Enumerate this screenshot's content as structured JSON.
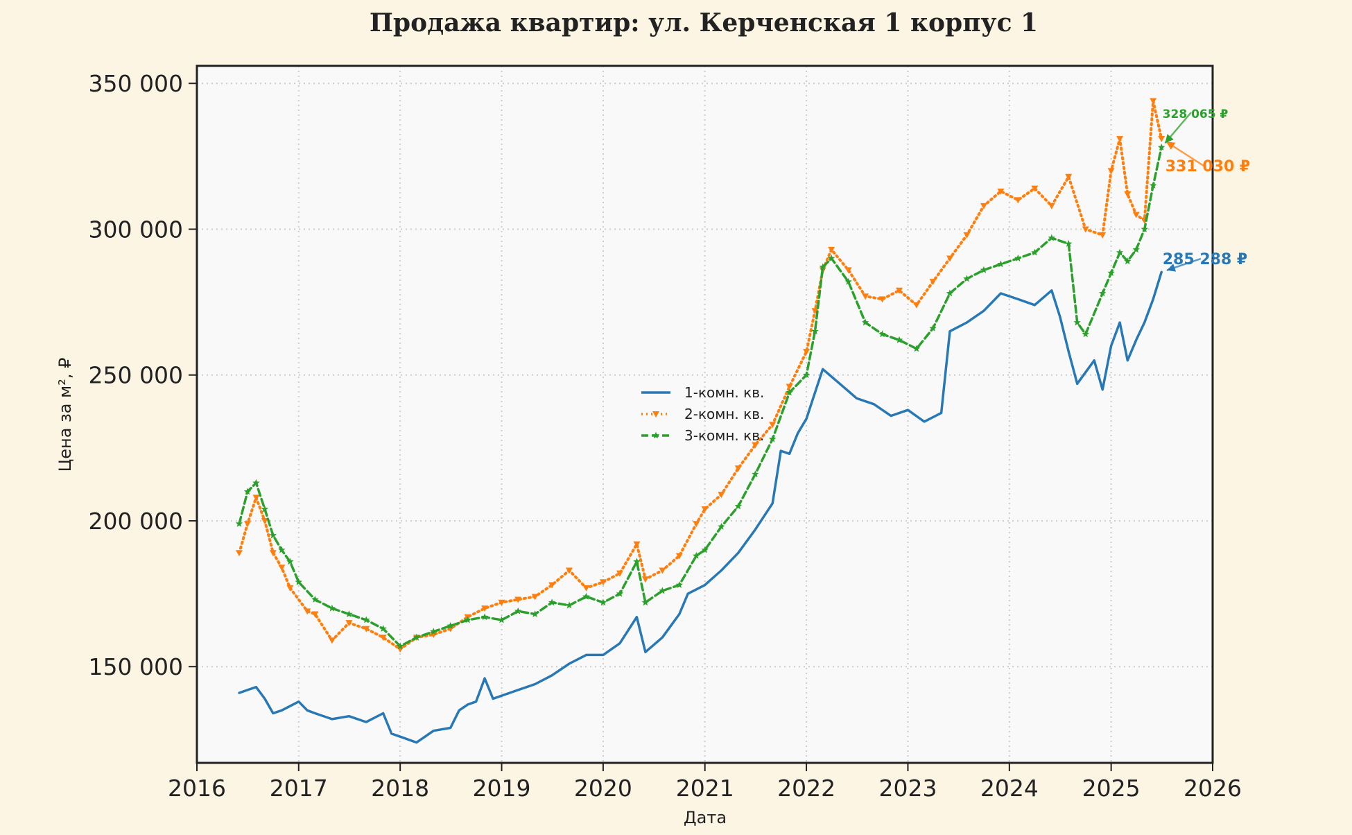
{
  "chart_data": {
    "type": "line",
    "title": "Продажа квартир: ул. Керченская 1 корпус 1",
    "xlabel": "Дата",
    "ylabel": "Цена за м², ₽",
    "xlim": [
      "2016-01-01",
      "2026-01-01"
    ],
    "ylim": [
      117000,
      356000
    ],
    "x_ticks": [
      "2016",
      "2017",
      "2018",
      "2019",
      "2020",
      "2021",
      "2022",
      "2023",
      "2024",
      "2025",
      "2026"
    ],
    "y_ticks": [
      {
        "value": 150000,
        "label": "150 000"
      },
      {
        "value": 200000,
        "label": "200 000"
      },
      {
        "value": 250000,
        "label": "250 000"
      },
      {
        "value": 300000,
        "label": "300 000"
      },
      {
        "value": 350000,
        "label": "350 000"
      }
    ],
    "grid": true,
    "legend_position": "center",
    "background_color": "#fcf5e3",
    "plot_background_color": "#f9f9f9",
    "series": [
      {
        "name": "1-комн. кв.",
        "color": "#2878b5",
        "style": "solid",
        "points": [
          [
            "2016-06-01",
            141000
          ],
          [
            "2016-07-01",
            142000
          ],
          [
            "2016-08-01",
            143000
          ],
          [
            "2016-09-01",
            139000
          ],
          [
            "2016-10-01",
            134000
          ],
          [
            "2016-11-01",
            135000
          ],
          [
            "2017-01-01",
            138000
          ],
          [
            "2017-02-01",
            135000
          ],
          [
            "2017-03-01",
            134000
          ],
          [
            "2017-05-01",
            132000
          ],
          [
            "2017-07-01",
            133000
          ],
          [
            "2017-09-01",
            131000
          ],
          [
            "2017-11-01",
            134000
          ],
          [
            "2017-12-01",
            127000
          ],
          [
            "2018-01-01",
            126000
          ],
          [
            "2018-03-01",
            124000
          ],
          [
            "2018-05-01",
            128000
          ],
          [
            "2018-07-01",
            129000
          ],
          [
            "2018-08-01",
            135000
          ],
          [
            "2018-09-01",
            137000
          ],
          [
            "2018-10-01",
            138000
          ],
          [
            "2018-11-01",
            146000
          ],
          [
            "2018-12-01",
            139000
          ],
          [
            "2019-03-01",
            142000
          ],
          [
            "2019-05-01",
            144000
          ],
          [
            "2019-07-01",
            147000
          ],
          [
            "2019-09-01",
            151000
          ],
          [
            "2019-11-01",
            154000
          ],
          [
            "2020-01-01",
            154000
          ],
          [
            "2020-03-01",
            158000
          ],
          [
            "2020-05-01",
            167000
          ],
          [
            "2020-06-01",
            155000
          ],
          [
            "2020-08-01",
            160000
          ],
          [
            "2020-10-01",
            168000
          ],
          [
            "2020-11-01",
            175000
          ],
          [
            "2021-01-01",
            178000
          ],
          [
            "2021-03-01",
            183000
          ],
          [
            "2021-05-01",
            189000
          ],
          [
            "2021-07-01",
            197000
          ],
          [
            "2021-09-01",
            206000
          ],
          [
            "2021-10-01",
            224000
          ],
          [
            "2021-11-01",
            223000
          ],
          [
            "2021-12-01",
            230000
          ],
          [
            "2022-01-01",
            235000
          ],
          [
            "2022-02-01",
            244000
          ],
          [
            "2022-03-01",
            252000
          ],
          [
            "2022-05-01",
            247000
          ],
          [
            "2022-07-01",
            242000
          ],
          [
            "2022-09-01",
            240000
          ],
          [
            "2022-11-01",
            236000
          ],
          [
            "2023-01-01",
            238000
          ],
          [
            "2023-03-01",
            234000
          ],
          [
            "2023-05-01",
            237000
          ],
          [
            "2023-06-01",
            265000
          ],
          [
            "2023-08-01",
            268000
          ],
          [
            "2023-10-01",
            272000
          ],
          [
            "2023-12-01",
            278000
          ],
          [
            "2024-02-01",
            276000
          ],
          [
            "2024-04-01",
            274000
          ],
          [
            "2024-06-01",
            279000
          ],
          [
            "2024-07-01",
            270000
          ],
          [
            "2024-08-01",
            258000
          ],
          [
            "2024-09-01",
            247000
          ],
          [
            "2024-11-01",
            255000
          ],
          [
            "2024-12-01",
            245000
          ],
          [
            "2025-01-01",
            260000
          ],
          [
            "2025-02-01",
            268000
          ],
          [
            "2025-03-01",
            255000
          ],
          [
            "2025-04-01",
            262000
          ],
          [
            "2025-05-01",
            268000
          ],
          [
            "2025-06-01",
            276000
          ],
          [
            "2025-07-01",
            285288
          ]
        ]
      },
      {
        "name": "2-комн. кв.",
        "color": "#ff7f0e",
        "style": "dotted",
        "marker": "triangle-down",
        "points": [
          [
            "2016-06-01",
            189000
          ],
          [
            "2016-07-01",
            199000
          ],
          [
            "2016-08-01",
            208000
          ],
          [
            "2016-09-01",
            200000
          ],
          [
            "2016-10-01",
            189000
          ],
          [
            "2016-11-01",
            184000
          ],
          [
            "2016-12-01",
            177000
          ],
          [
            "2017-02-01",
            169000
          ],
          [
            "2017-03-01",
            168000
          ],
          [
            "2017-05-01",
            159000
          ],
          [
            "2017-07-01",
            165000
          ],
          [
            "2017-09-01",
            163000
          ],
          [
            "2017-11-01",
            160000
          ],
          [
            "2018-01-01",
            156000
          ],
          [
            "2018-03-01",
            160000
          ],
          [
            "2018-05-01",
            161000
          ],
          [
            "2018-07-01",
            163000
          ],
          [
            "2018-09-01",
            167000
          ],
          [
            "2018-11-01",
            170000
          ],
          [
            "2019-01-01",
            172000
          ],
          [
            "2019-03-01",
            173000
          ],
          [
            "2019-05-01",
            174000
          ],
          [
            "2019-07-01",
            178000
          ],
          [
            "2019-09-01",
            183000
          ],
          [
            "2019-11-01",
            177000
          ],
          [
            "2020-01-01",
            179000
          ],
          [
            "2020-03-01",
            182000
          ],
          [
            "2020-05-01",
            192000
          ],
          [
            "2020-06-01",
            180000
          ],
          [
            "2020-08-01",
            183000
          ],
          [
            "2020-10-01",
            188000
          ],
          [
            "2020-12-01",
            199000
          ],
          [
            "2021-01-01",
            204000
          ],
          [
            "2021-03-01",
            209000
          ],
          [
            "2021-05-01",
            218000
          ],
          [
            "2021-07-01",
            226000
          ],
          [
            "2021-09-01",
            233000
          ],
          [
            "2021-11-01",
            246000
          ],
          [
            "2022-01-01",
            258000
          ],
          [
            "2022-02-01",
            272000
          ],
          [
            "2022-03-01",
            286000
          ],
          [
            "2022-04-01",
            293000
          ],
          [
            "2022-06-01",
            286000
          ],
          [
            "2022-08-01",
            277000
          ],
          [
            "2022-10-01",
            276000
          ],
          [
            "2022-12-01",
            279000
          ],
          [
            "2023-02-01",
            274000
          ],
          [
            "2023-04-01",
            282000
          ],
          [
            "2023-06-01",
            290000
          ],
          [
            "2023-08-01",
            298000
          ],
          [
            "2023-10-01",
            308000
          ],
          [
            "2023-12-01",
            313000
          ],
          [
            "2024-02-01",
            310000
          ],
          [
            "2024-04-01",
            314000
          ],
          [
            "2024-06-01",
            308000
          ],
          [
            "2024-08-01",
            318000
          ],
          [
            "2024-10-01",
            300000
          ],
          [
            "2024-12-01",
            298000
          ],
          [
            "2025-01-01",
            320000
          ],
          [
            "2025-02-01",
            331000
          ],
          [
            "2025-03-01",
            312000
          ],
          [
            "2025-04-01",
            305000
          ],
          [
            "2025-05-01",
            303000
          ],
          [
            "2025-06-01",
            344000
          ],
          [
            "2025-07-01",
            331030
          ]
        ]
      },
      {
        "name": "3-комн. кв.",
        "color": "#2ca02c",
        "style": "dashed",
        "marker": "star",
        "points": [
          [
            "2016-06-01",
            199000
          ],
          [
            "2016-07-01",
            210000
          ],
          [
            "2016-08-01",
            213000
          ],
          [
            "2016-09-01",
            204000
          ],
          [
            "2016-10-01",
            195000
          ],
          [
            "2016-11-01",
            190000
          ],
          [
            "2016-12-01",
            186000
          ],
          [
            "2017-01-01",
            179000
          ],
          [
            "2017-03-01",
            173000
          ],
          [
            "2017-05-01",
            170000
          ],
          [
            "2017-07-01",
            168000
          ],
          [
            "2017-09-01",
            166000
          ],
          [
            "2017-11-01",
            163000
          ],
          [
            "2018-01-01",
            157000
          ],
          [
            "2018-03-01",
            160000
          ],
          [
            "2018-05-01",
            162000
          ],
          [
            "2018-07-01",
            164000
          ],
          [
            "2018-09-01",
            166000
          ],
          [
            "2018-11-01",
            167000
          ],
          [
            "2019-01-01",
            166000
          ],
          [
            "2019-03-01",
            169000
          ],
          [
            "2019-05-01",
            168000
          ],
          [
            "2019-07-01",
            172000
          ],
          [
            "2019-09-01",
            171000
          ],
          [
            "2019-11-01",
            174000
          ],
          [
            "2020-01-01",
            172000
          ],
          [
            "2020-03-01",
            175000
          ],
          [
            "2020-05-01",
            186000
          ],
          [
            "2020-06-01",
            172000
          ],
          [
            "2020-08-01",
            176000
          ],
          [
            "2020-10-01",
            178000
          ],
          [
            "2020-12-01",
            188000
          ],
          [
            "2021-01-01",
            190000
          ],
          [
            "2021-03-01",
            198000
          ],
          [
            "2021-05-01",
            205000
          ],
          [
            "2021-07-01",
            216000
          ],
          [
            "2021-09-01",
            228000
          ],
          [
            "2021-11-01",
            244000
          ],
          [
            "2022-01-01",
            250000
          ],
          [
            "2022-02-01",
            265000
          ],
          [
            "2022-03-01",
            287000
          ],
          [
            "2022-04-01",
            290000
          ],
          [
            "2022-06-01",
            282000
          ],
          [
            "2022-08-01",
            268000
          ],
          [
            "2022-10-01",
            264000
          ],
          [
            "2022-12-01",
            262000
          ],
          [
            "2023-02-01",
            259000
          ],
          [
            "2023-04-01",
            266000
          ],
          [
            "2023-06-01",
            278000
          ],
          [
            "2023-08-01",
            283000
          ],
          [
            "2023-10-01",
            286000
          ],
          [
            "2023-12-01",
            288000
          ],
          [
            "2024-02-01",
            290000
          ],
          [
            "2024-04-01",
            292000
          ],
          [
            "2024-06-01",
            297000
          ],
          [
            "2024-08-01",
            295000
          ],
          [
            "2024-09-01",
            268000
          ],
          [
            "2024-10-01",
            264000
          ],
          [
            "2024-12-01",
            278000
          ],
          [
            "2025-01-01",
            285000
          ],
          [
            "2025-02-01",
            292000
          ],
          [
            "2025-03-01",
            289000
          ],
          [
            "2025-04-01",
            293000
          ],
          [
            "2025-05-01",
            300000
          ],
          [
            "2025-06-01",
            315000
          ],
          [
            "2025-07-01",
            328065
          ]
        ]
      }
    ],
    "annotations": [
      {
        "text": "285 288 ₽",
        "color": "#2878b5",
        "series": 0
      },
      {
        "text": "331 030 ₽",
        "color": "#ff7f0e",
        "series": 1
      },
      {
        "text": "328 065 ₽",
        "color": "#2ca02c",
        "series": 2
      }
    ]
  }
}
